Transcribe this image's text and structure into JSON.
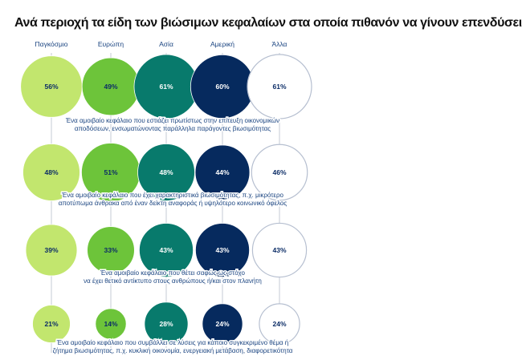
{
  "chart_data": {
    "type": "bubble-matrix",
    "title": "Ανά περιοχή τα είδη των βιώσιμων κεφαλαίων στα οποία πιθανόν να γίνουν επενδύσεις",
    "categories": [
      "Παγκόσμιο",
      "Ευρώπη",
      "Ασία",
      "Αμερική",
      "Άλλα"
    ],
    "category_colors": [
      "#c2e66e",
      "#6dc43a",
      "#087a6c",
      "#062a5e",
      "#ffffff"
    ],
    "category_text_colors": [
      "#0b2c66",
      "#0b2c66",
      "#ffffff",
      "#ffffff",
      "#0b2c66"
    ],
    "outline_color": "#b6bfd0",
    "line_color": "#c6cbd6",
    "text_color": "#1a4480",
    "rows": [
      {
        "label": "Ένα αμοιβαίο κεφάλαιο που εστιάζει πρωτίστως στην επίτευξη οικονομικών αποδόσεων, ενσωματώνοντας παράλληλα παράγοντες βιωσιμότητας",
        "label_lines": [
          "Ένα αμοιβαίο κεφάλαιο που εστιάζει πρωτίστως στην επίτευξη οικονομικών",
          "αποδόσεων, ενσωματώνοντας παράλληλα παράγοντες βιωσιμότητας"
        ],
        "values": [
          56,
          49,
          61,
          60,
          61
        ]
      },
      {
        "label": "Ένα αμοιβαίο κεφάλαιο που έχει χαρακτηριστικά βιωσιμότητας, π.χ. μικρότερο αποτύπωμα άνθρακα από έναν δείκτη αναφοράς ή υψηλότερο κοινωνικό όφελος",
        "label_lines": [
          "Ένα αμοιβαίο κεφάλαιο που έχει χαρακτηριστικά βιωσιμότητας, π.χ. μικρότερο",
          "αποτύπωμα άνθρακα από έναν δείκτη αναφοράς ή υψηλότερο κοινωνικό όφελος"
        ],
        "values": [
          48,
          51,
          48,
          44,
          46
        ]
      },
      {
        "label": "Ένα αμοιβαίο κεφάλαιο που θέτει σαφώς ως στόχο να έχει θετικό αντίκτυπο στους ανθρώπους ή/και στον πλανήτη",
        "label_lines": [
          "Ένα αμοιβαίο κεφάλαιο που θέτει σαφώς ως στόχο",
          "να έχει θετικό αντίκτυπο στους ανθρώπους ή/και στον πλανήτη"
        ],
        "values": [
          39,
          33,
          43,
          43,
          43
        ]
      },
      {
        "label": "Ένα αμοιβαίο κεφάλαιο που συμβάλλει σε λύσεις για κάποιο συγκεκριμένο θέμα ή ζήτημα βιωσιμότητας, π.χ. κυκλική οικονομία, ενεργειακή μετάβαση, διαφορετικότητα",
        "label_lines": [
          "Ένα αμοιβαίο κεφάλαιο που συμβάλλει σε λύσεις για κάποιο συγκεκριμένο θέμα ή",
          "ζήτημα βιωσιμότητας, π.χ. κυκλική οικονομία, ενεργειακή μετάβαση, διαφορετικότητα"
        ],
        "values": [
          21,
          14,
          28,
          24,
          24
        ]
      }
    ],
    "value_suffix": "%"
  }
}
